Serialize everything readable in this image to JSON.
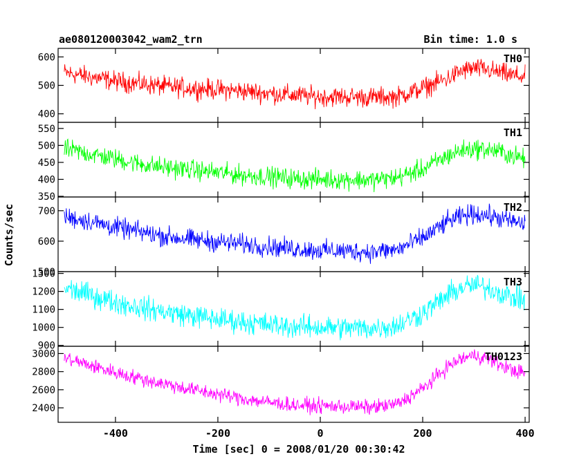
{
  "header": {
    "title": "ae080120003042_wam2_trn",
    "bin_time": "Bin time: 1.0 s"
  },
  "axes": {
    "xlabel": "Time [sec] 0 = 2008/01/20 00:30:42",
    "ylabel": "Counts/sec"
  },
  "chart_data": {
    "type": "line",
    "title": "ae080120003042_wam2_trn",
    "xlabel": "Time [sec] 0 = 2008/01/20 00:30:42",
    "ylabel": "Counts/sec",
    "xlim": [
      -512,
      408
    ],
    "x_ticks": [
      -400,
      -200,
      0,
      200,
      400
    ],
    "bin_time_s": 1.0,
    "grid": false,
    "series": [
      {
        "name": "TH0",
        "color": "#ff0000",
        "ylim": [
          370,
          630
        ],
        "y_ticks": [
          400,
          500,
          600
        ],
        "noise_amplitude": 30,
        "x": [
          -500,
          -450,
          -400,
          -350,
          -300,
          -250,
          -200,
          -150,
          -100,
          -50,
          0,
          50,
          100,
          150,
          200,
          250,
          275,
          300,
          325,
          350,
          375,
          400
        ],
        "values": [
          545,
          530,
          515,
          505,
          495,
          490,
          485,
          480,
          472,
          465,
          460,
          460,
          458,
          460,
          490,
          525,
          550,
          560,
          555,
          545,
          535,
          530
        ]
      },
      {
        "name": "TH1",
        "color": "#00ff00",
        "ylim": [
          348,
          568
        ],
        "y_ticks": [
          350,
          400,
          450,
          500,
          550
        ],
        "noise_amplitude": 25,
        "x": [
          -500,
          -450,
          -400,
          -350,
          -300,
          -250,
          -200,
          -150,
          -100,
          -50,
          0,
          50,
          100,
          150,
          200,
          250,
          275,
          300,
          325,
          350,
          375,
          400
        ],
        "values": [
          490,
          475,
          460,
          445,
          435,
          428,
          420,
          412,
          408,
          402,
          400,
          400,
          398,
          405,
          430,
          470,
          485,
          490,
          488,
          482,
          470,
          460
        ]
      },
      {
        "name": "TH2",
        "color": "#0000ff",
        "ylim": [
          500,
          745
        ],
        "y_ticks": [
          500,
          600,
          700
        ],
        "noise_amplitude": 28,
        "x": [
          -500,
          -450,
          -400,
          -350,
          -300,
          -250,
          -200,
          -150,
          -100,
          -50,
          0,
          50,
          100,
          150,
          200,
          250,
          275,
          300,
          325,
          350,
          375,
          400
        ],
        "values": [
          680,
          665,
          645,
          630,
          615,
          605,
          598,
          590,
          582,
          575,
          570,
          568,
          565,
          572,
          610,
          665,
          680,
          690,
          685,
          675,
          665,
          655
        ]
      },
      {
        "name": "TH3",
        "color": "#00ffff",
        "ylim": [
          895,
          1310
        ],
        "y_ticks": [
          900,
          1000,
          1100,
          1200,
          1300
        ],
        "noise_amplitude": 55,
        "x": [
          -500,
          -450,
          -400,
          -350,
          -300,
          -250,
          -200,
          -150,
          -100,
          -50,
          0,
          50,
          100,
          150,
          200,
          250,
          275,
          300,
          325,
          350,
          375,
          400
        ],
        "values": [
          1220,
          1180,
          1140,
          1110,
          1085,
          1065,
          1045,
          1030,
          1015,
          1005,
          1000,
          998,
          995,
          1010,
          1080,
          1180,
          1220,
          1235,
          1220,
          1195,
          1170,
          1150
        ]
      },
      {
        "name": "TH0123",
        "color": "#ff00ff",
        "ylim": [
          2240,
          3080
        ],
        "y_ticks": [
          2400,
          2600,
          2800,
          3000
        ],
        "noise_amplitude": 70,
        "x": [
          -500,
          -450,
          -400,
          -350,
          -300,
          -250,
          -200,
          -150,
          -100,
          -50,
          0,
          50,
          100,
          150,
          200,
          250,
          275,
          300,
          325,
          350,
          375,
          400
        ],
        "values": [
          2950,
          2870,
          2790,
          2720,
          2660,
          2600,
          2550,
          2500,
          2460,
          2430,
          2420,
          2415,
          2405,
          2440,
          2610,
          2860,
          2940,
          2980,
          2950,
          2880,
          2820,
          2780
        ]
      }
    ]
  }
}
